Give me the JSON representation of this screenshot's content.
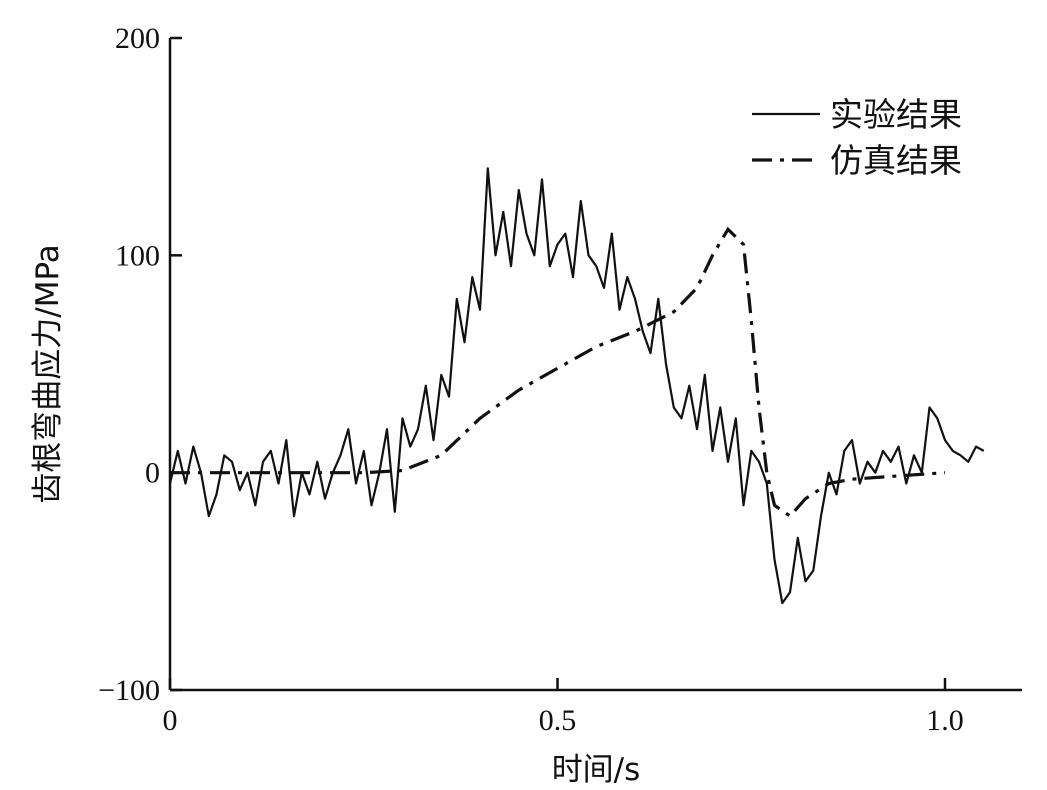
{
  "chart_data": {
    "type": "line",
    "title": "",
    "xlabel": "时间/s",
    "ylabel": "齿根弯曲应力/MPa",
    "xlim": [
      0,
      1.1
    ],
    "ylim": [
      -100,
      200
    ],
    "xticks": [
      0,
      0.5,
      1.0
    ],
    "xtick_labels": [
      "0",
      "0.5",
      "1.0"
    ],
    "yticks": [
      -100,
      0,
      100,
      200
    ],
    "ytick_labels": [
      "−100",
      "0",
      "100",
      "200"
    ],
    "grid": false,
    "legend_position": "top-right",
    "series": [
      {
        "name": "实验结果",
        "style": "solid",
        "x": [
          0,
          0.01,
          0.02,
          0.03,
          0.04,
          0.05,
          0.06,
          0.07,
          0.08,
          0.09,
          0.1,
          0.11,
          0.12,
          0.13,
          0.14,
          0.15,
          0.16,
          0.17,
          0.18,
          0.19,
          0.2,
          0.21,
          0.22,
          0.23,
          0.24,
          0.25,
          0.26,
          0.27,
          0.28,
          0.29,
          0.3,
          0.31,
          0.32,
          0.33,
          0.34,
          0.35,
          0.36,
          0.37,
          0.38,
          0.39,
          0.4,
          0.41,
          0.42,
          0.43,
          0.44,
          0.45,
          0.46,
          0.47,
          0.48,
          0.49,
          0.5,
          0.51,
          0.52,
          0.53,
          0.54,
          0.55,
          0.56,
          0.57,
          0.58,
          0.59,
          0.6,
          0.61,
          0.62,
          0.63,
          0.64,
          0.65,
          0.66,
          0.67,
          0.68,
          0.69,
          0.7,
          0.71,
          0.72,
          0.73,
          0.74,
          0.75,
          0.76,
          0.77,
          0.78,
          0.79,
          0.8,
          0.81,
          0.82,
          0.83,
          0.84,
          0.85,
          0.86,
          0.87,
          0.88,
          0.89,
          0.9,
          0.91,
          0.92,
          0.93,
          0.94,
          0.95,
          0.96,
          0.97,
          0.98,
          0.99,
          1.0,
          1.01,
          1.02,
          1.03,
          1.04,
          1.05
        ],
        "y": [
          -5,
          10,
          -5,
          12,
          0,
          -20,
          -10,
          8,
          5,
          -8,
          0,
          -15,
          5,
          10,
          -5,
          15,
          -20,
          0,
          -10,
          5,
          -12,
          0,
          8,
          20,
          -5,
          10,
          -15,
          0,
          20,
          -18,
          25,
          12,
          20,
          40,
          15,
          45,
          35,
          80,
          60,
          90,
          75,
          140,
          100,
          120,
          95,
          130,
          110,
          100,
          135,
          95,
          105,
          110,
          90,
          125,
          100,
          95,
          85,
          110,
          75,
          90,
          80,
          65,
          55,
          80,
          50,
          30,
          25,
          40,
          20,
          45,
          10,
          30,
          5,
          25,
          -15,
          10,
          5,
          -5,
          -40,
          -60,
          -55,
          -30,
          -50,
          -45,
          -20,
          0,
          -10,
          10,
          15,
          -5,
          5,
          0,
          10,
          5,
          12,
          -5,
          8,
          0,
          30,
          25,
          15,
          10,
          8,
          5,
          12,
          10
        ]
      },
      {
        "name": "仿真结果",
        "style": "dash-dot",
        "x": [
          0,
          0.05,
          0.1,
          0.15,
          0.2,
          0.25,
          0.3,
          0.35,
          0.4,
          0.45,
          0.5,
          0.55,
          0.6,
          0.65,
          0.68,
          0.7,
          0.72,
          0.74,
          0.75,
          0.76,
          0.77,
          0.78,
          0.8,
          0.82,
          0.85,
          0.88,
          0.92,
          0.96,
          1.0
        ],
        "y": [
          0,
          0,
          0,
          0,
          0,
          0,
          1,
          8,
          25,
          38,
          48,
          58,
          65,
          74,
          85,
          100,
          112,
          105,
          70,
          30,
          0,
          -15,
          -20,
          -12,
          -5,
          -3,
          -2,
          -1,
          0
        ]
      }
    ]
  }
}
